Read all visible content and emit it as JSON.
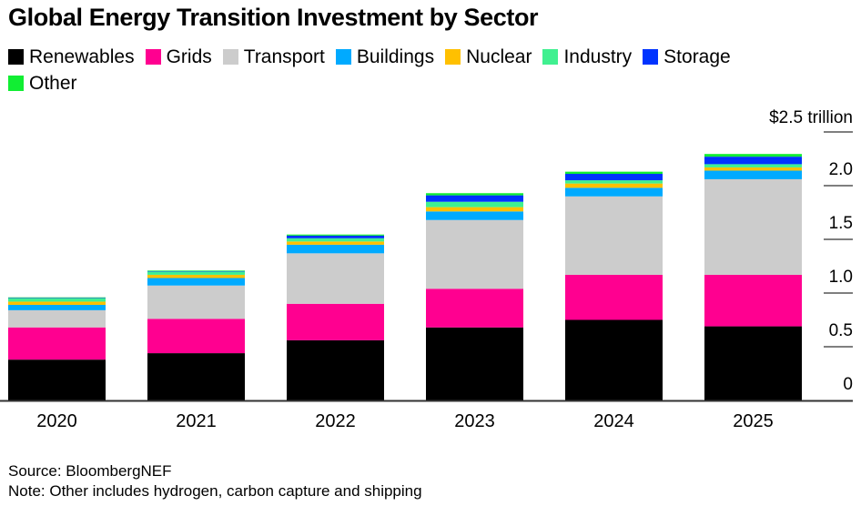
{
  "chart_data": {
    "type": "bar",
    "stacked": true,
    "title": "Global Energy Transition Investment by Sector",
    "xlabel": "",
    "ylabel": "$ trillion",
    "y_unit_label": "$2.5 trillion",
    "ylim": [
      0,
      2.5
    ],
    "yticks": [
      0,
      0.5,
      1.0,
      1.5,
      2.0,
      2.5
    ],
    "ytick_labels": [
      "0",
      "0.5",
      "1.0",
      "1.5",
      "2.0",
      "$2.5 trillion"
    ],
    "y_axis_position": "right",
    "grid": false,
    "legend_position": "top-left",
    "categories": [
      "2020",
      "2021",
      "2022",
      "2023",
      "2024",
      "2025"
    ],
    "series": [
      {
        "name": "Renewables",
        "color": "#000000",
        "values": [
          0.38,
          0.44,
          0.56,
          0.68,
          0.75,
          0.69
        ]
      },
      {
        "name": "Grids",
        "color": "#ff0090",
        "values": [
          0.3,
          0.32,
          0.34,
          0.36,
          0.42,
          0.48
        ]
      },
      {
        "name": "Transport",
        "color": "#cccccc",
        "values": [
          0.16,
          0.31,
          0.47,
          0.64,
          0.73,
          0.89
        ]
      },
      {
        "name": "Buildings",
        "color": "#00aaff",
        "values": [
          0.05,
          0.07,
          0.08,
          0.08,
          0.08,
          0.08
        ]
      },
      {
        "name": "Nuclear",
        "color": "#ffc000",
        "values": [
          0.03,
          0.03,
          0.03,
          0.04,
          0.04,
          0.03
        ]
      },
      {
        "name": "Industry",
        "color": "#40f090",
        "values": [
          0.03,
          0.03,
          0.03,
          0.05,
          0.03,
          0.03
        ]
      },
      {
        "name": "Storage",
        "color": "#0033ff",
        "values": [
          0.005,
          0.005,
          0.025,
          0.06,
          0.06,
          0.07
        ]
      },
      {
        "name": "Other",
        "color": "#11ee33",
        "values": [
          0.005,
          0.005,
          0.01,
          0.02,
          0.02,
          0.025
        ]
      }
    ],
    "footnotes": {
      "source": "Source: BloombergNEF",
      "note": "Note: Other includes hydrogen, carbon capture and shipping"
    }
  }
}
